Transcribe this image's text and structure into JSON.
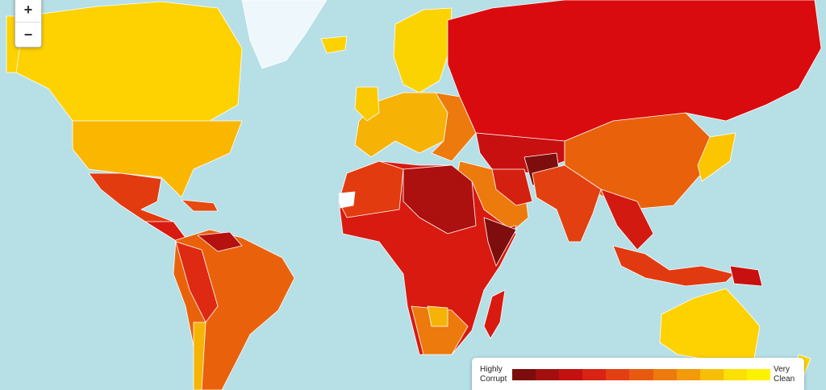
{
  "zoom": {
    "zoom_in": "+",
    "zoom_out": "−"
  },
  "legend": {
    "low_label": "Highly Corrupt",
    "high_label": "Very Clean",
    "colors": [
      "#7b0d0d",
      "#a30f0f",
      "#c51010",
      "#d92313",
      "#e43f12",
      "#e85a0f",
      "#ed7a0c",
      "#f29a09",
      "#f7bf06",
      "#fbe004",
      "#fff200"
    ]
  }
}
